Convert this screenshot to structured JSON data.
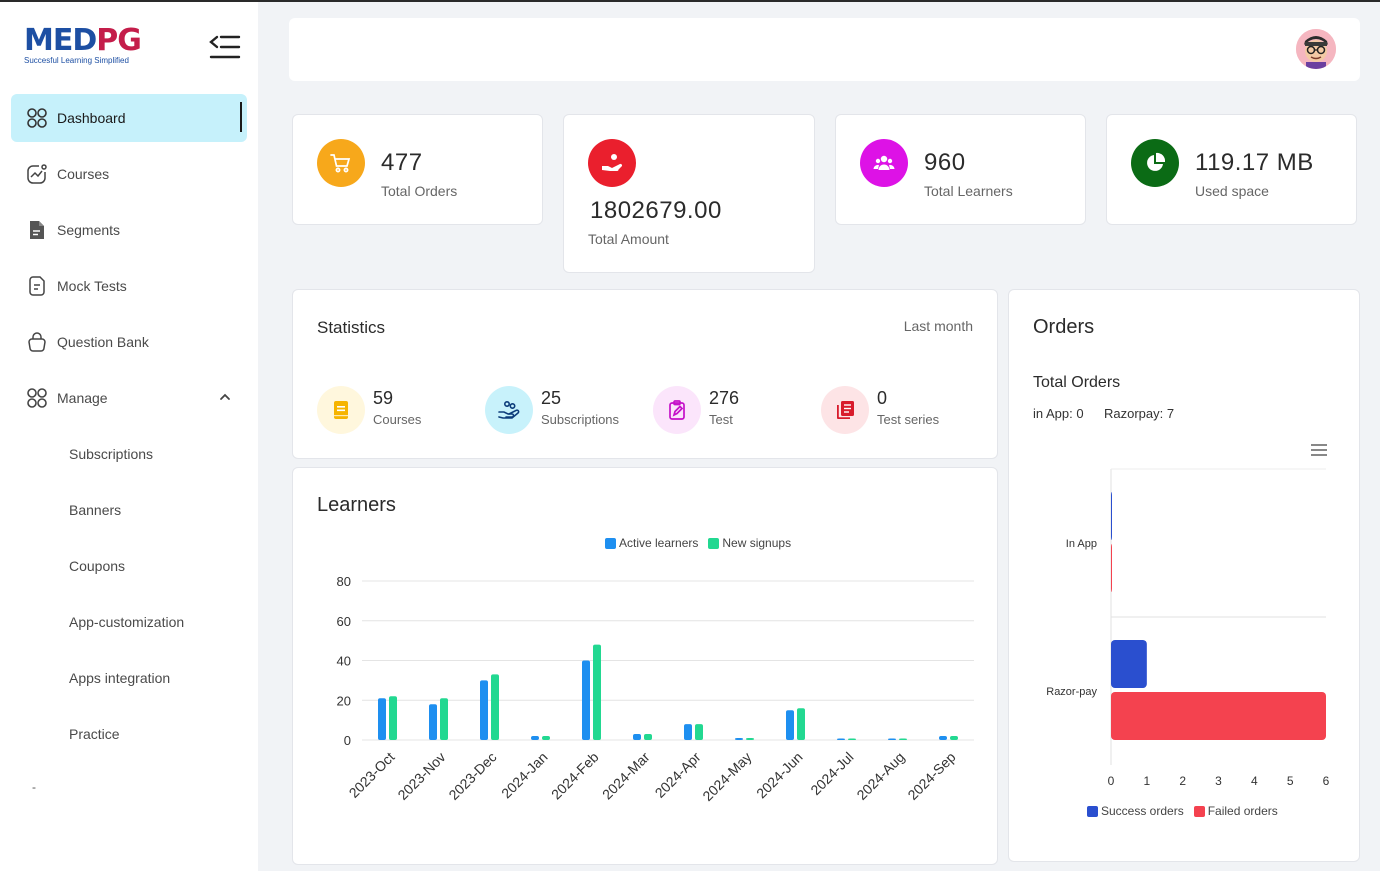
{
  "brand": {
    "part1": "MED",
    "part2": "PG",
    "tagline": "Succesful Learning Simplified"
  },
  "sidebar": {
    "items": [
      {
        "label": "Dashboard",
        "icon": "dashboard-grid-icon"
      },
      {
        "label": "Courses",
        "icon": "courses-chart-icon"
      },
      {
        "label": "Segments",
        "icon": "document-icon"
      },
      {
        "label": "Mock Tests",
        "icon": "mock-test-icon"
      },
      {
        "label": "Question Bank",
        "icon": "bag-icon"
      },
      {
        "label": "Manage",
        "icon": "manage-grid-icon"
      }
    ],
    "manage_sub": [
      "Subscriptions",
      "Banners",
      "Coupons",
      "App-customization",
      "Apps integration",
      "Practice"
    ],
    "footer_mark": "-"
  },
  "stats": [
    {
      "value": "477",
      "label": "Total Orders",
      "color": "#f7a81b",
      "icon": "cart-icon"
    },
    {
      "value": "1802679.00",
      "label": "Total Amount",
      "color": "#ea1f2d",
      "icon": "money-hand-icon"
    },
    {
      "value": "960",
      "label": "Total Learners",
      "color": "#dd12e6",
      "icon": "users-icon"
    },
    {
      "value": "119.17 MB",
      "label": "Used space",
      "color": "#0b6b15",
      "icon": "pie-icon"
    }
  ],
  "statistics": {
    "title": "Statistics",
    "period": "Last month",
    "items": [
      {
        "value": "59",
        "label": "Courses",
        "bg": "#fff7dd",
        "color": "#f6b400",
        "icon": "book-icon"
      },
      {
        "value": "25",
        "label": "Subscriptions",
        "bg": "#c8f2fb",
        "color": "#0d3c7a",
        "icon": "hand-coins-icon"
      },
      {
        "value": "276",
        "label": "Test",
        "bg": "#fbe5fb",
        "color": "#c511c9",
        "icon": "edit-clipboard-icon"
      },
      {
        "value": "0",
        "label": "Test series",
        "bg": "#fde4e6",
        "color": "#d81b2c",
        "icon": "book-list-icon"
      }
    ]
  },
  "learners": {
    "title": "Learners",
    "chart_data": {
      "type": "bar",
      "categories": [
        "2023-Oct",
        "2023-Nov",
        "2023-Dec",
        "2024-Jan",
        "2024-Feb",
        "2024-Mar",
        "2024-Apr",
        "2024-May",
        "2024-Jun",
        "2024-Jul",
        "2024-Aug",
        "2024-Sep"
      ],
      "series": [
        {
          "name": "Active learners",
          "color": "#1e8ff0",
          "values": [
            21,
            18,
            30,
            2,
            40,
            3,
            8,
            1,
            15,
            0.5,
            0.3,
            2
          ]
        },
        {
          "name": "New signups",
          "color": "#22d891",
          "values": [
            22,
            21,
            33,
            2,
            48,
            3,
            8,
            1,
            16,
            0.3,
            0.3,
            2
          ]
        }
      ],
      "ylim": [
        0,
        80
      ],
      "yticks": [
        "0",
        "20",
        "40",
        "60",
        "80"
      ],
      "legend": "top-center",
      "grid": true
    }
  },
  "orders": {
    "title": "Orders",
    "subtitle": "Total Orders",
    "in_app": "in App: 0",
    "razorpay": "Razorpay: 7",
    "chart_data": {
      "type": "bar",
      "orientation": "horizontal",
      "categories": [
        "In App",
        "Razor-pay"
      ],
      "series": [
        {
          "name": "Success orders",
          "color": "#2a4fcf",
          "values": [
            0,
            1
          ]
        },
        {
          "name": "Failed orders",
          "color": "#f4424f",
          "values": [
            0,
            6
          ]
        }
      ],
      "xlim": [
        0,
        6
      ],
      "xticks": [
        "0",
        "1",
        "2",
        "3",
        "4",
        "5",
        "6"
      ],
      "legend": "bottom-center",
      "menu_icon": "hamburger-menu-icon"
    }
  }
}
